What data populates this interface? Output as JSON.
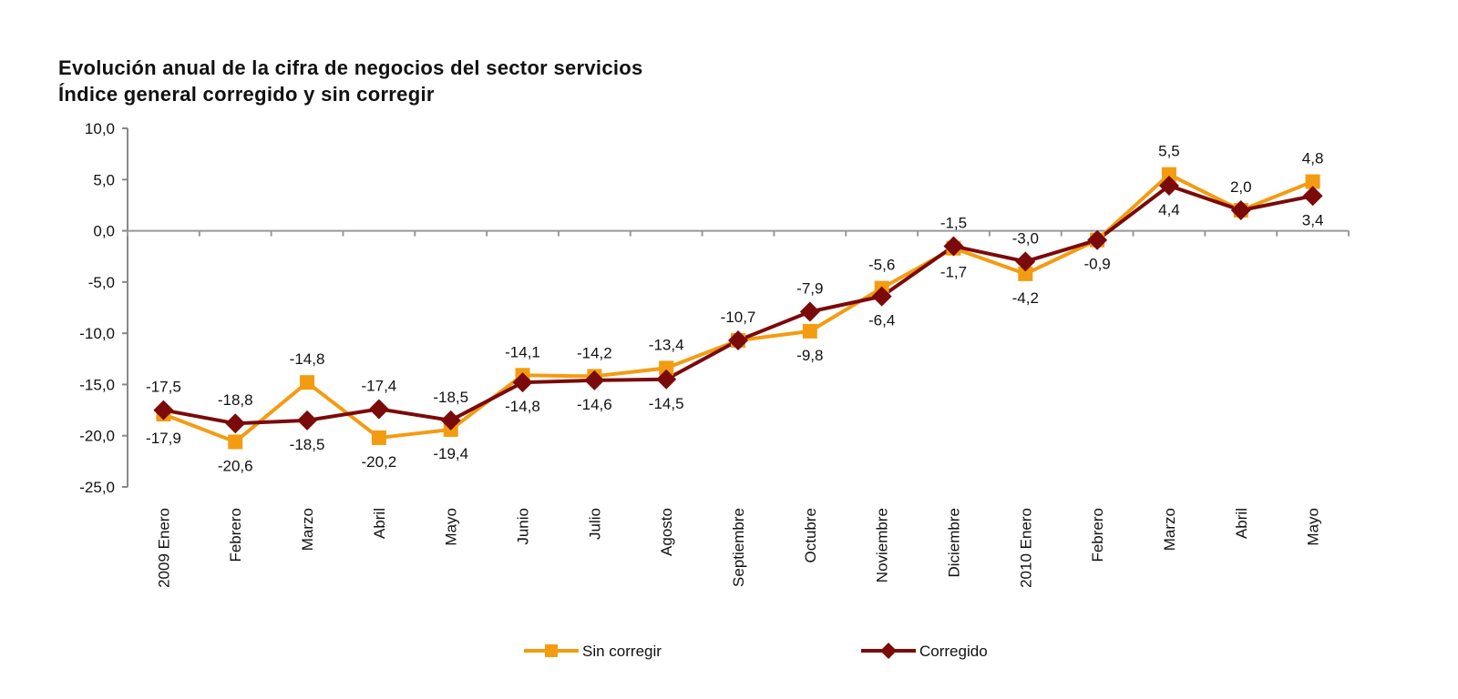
{
  "chart_data": {
    "type": "line",
    "title": "Evolución anual de la cifra de negocios del sector servicios",
    "subtitle": "Índice general corregido y sin corregir",
    "xlabel": "",
    "ylabel": "",
    "ylim": [
      -25,
      10
    ],
    "yticks": [
      "10,0",
      "5,0",
      "0,0",
      "-5,0",
      "-10,0",
      "-15,0",
      "-20,0",
      "-25,0"
    ],
    "grid": false,
    "legend": "bottom",
    "categories": [
      "2009 Enero",
      "Febrero",
      "Marzo",
      "Abril",
      "Mayo",
      "Junio",
      "Julio",
      "Agosto",
      "Septiembre",
      "Octubre",
      "Noviembre",
      "Diciembre",
      "2010 Enero",
      "Febrero",
      "Marzo",
      "Abril",
      "Mayo"
    ],
    "series": [
      {
        "name": "Sin corregir",
        "color": "#f39c12",
        "marker": "square",
        "values": [
          -17.9,
          -20.6,
          -14.8,
          -20.2,
          -19.4,
          -14.1,
          -14.2,
          -13.4,
          -10.7,
          -9.8,
          -5.6,
          -1.7,
          -4.2,
          -0.9,
          5.5,
          2.0,
          4.8
        ],
        "labels": [
          "-17,9",
          "-20,6",
          "-14,8",
          "-20,2",
          "-19,4",
          "-14,1",
          "-14,2",
          "-13,4",
          "-10,7",
          "-9,8",
          "-5,6",
          "-1,7",
          "-4,2",
          "-0,9",
          "5,5",
          "2,0",
          "4,8"
        ]
      },
      {
        "name": "Corregido",
        "color": "#7b0a0a",
        "marker": "diamond",
        "values": [
          -17.5,
          -18.8,
          -18.5,
          -17.4,
          -18.5,
          -14.8,
          -14.6,
          -14.5,
          -10.7,
          -7.9,
          -6.4,
          -1.5,
          -3.0,
          -0.9,
          4.4,
          2.0,
          3.4
        ],
        "labels": [
          "-17,5",
          "-18,8",
          "-18,5",
          "-17,4",
          "-18,5",
          "-14,8",
          "-14,6",
          "-14,5",
          null,
          "-7,9",
          "-6,4",
          "-1,5",
          "-3,0",
          null,
          "4,4",
          null,
          "3,4"
        ]
      }
    ]
  }
}
